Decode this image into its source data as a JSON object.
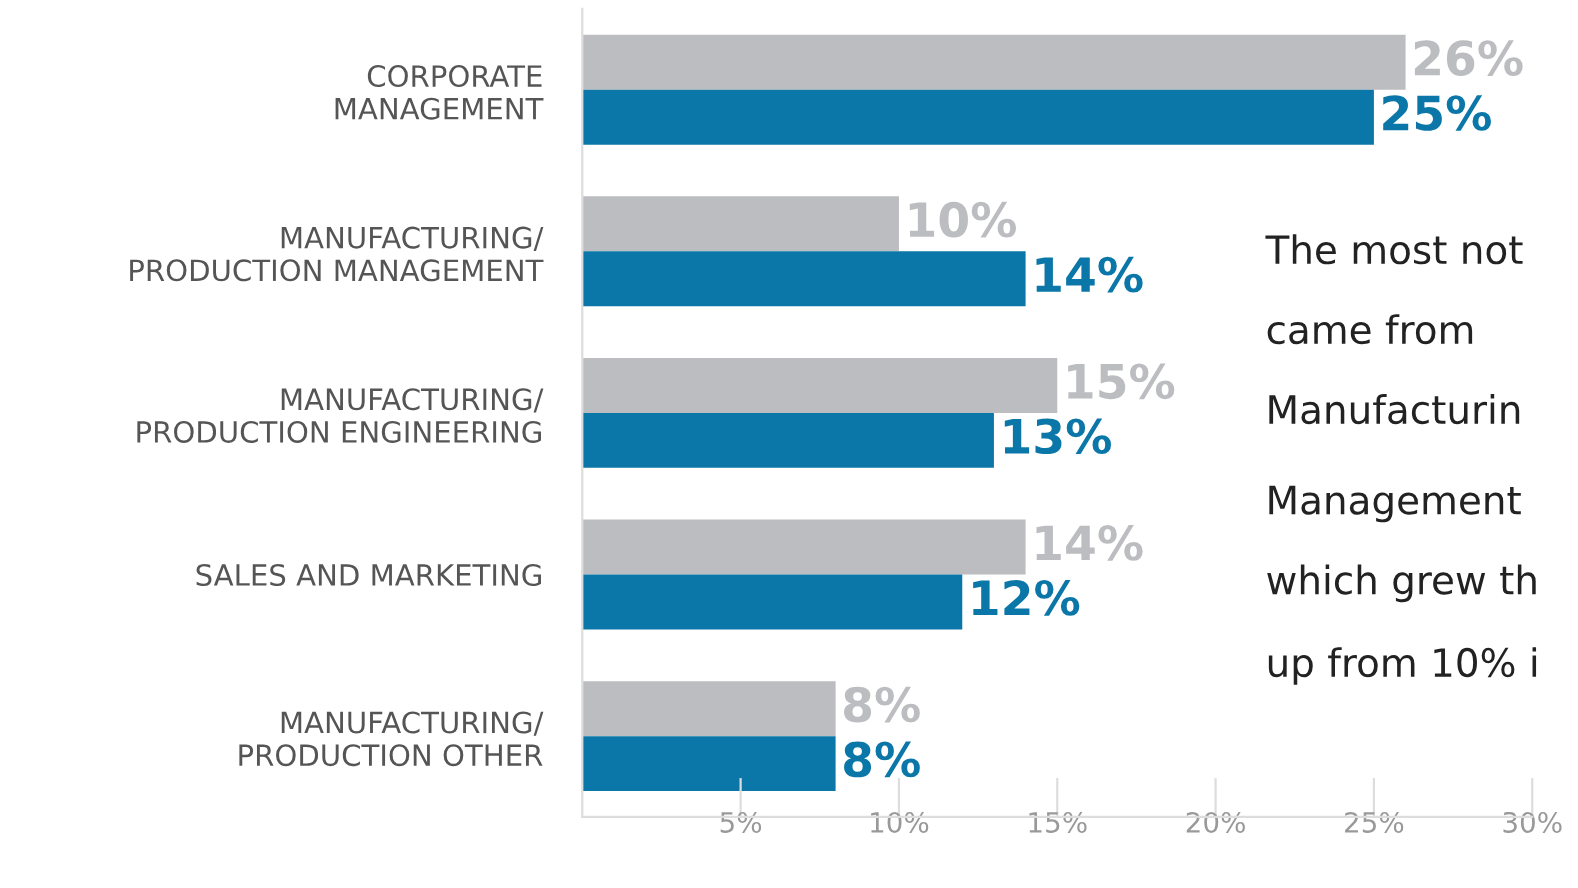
{
  "chart_data": {
    "type": "bar",
    "orientation": "horizontal",
    "categories": [
      "CORPORATE\nMANAGEMENT",
      "MANUFACTURING/\nPRODUCTION MANAGEMENT",
      "MANUFACTURING/\nPRODUCTION ENGINEERING",
      "SALES AND MARKETING",
      "MANUFACTURING/\nPRODUCTION OTHER"
    ],
    "series": [
      {
        "color": "#bcbdc0",
        "values": [
          26,
          10,
          15,
          14,
          8
        ],
        "value_labels": [
          "26%",
          "10%",
          "15%",
          "14%",
          "8%"
        ]
      },
      {
        "color": "#0b77a8",
        "values": [
          25,
          14,
          13,
          12,
          8
        ],
        "value_labels": [
          "25%",
          "14%",
          "13%",
          "12%",
          "8%"
        ]
      }
    ],
    "xlim": [
      0,
      30
    ],
    "xticks": [
      {
        "value": 5,
        "label": "5%"
      },
      {
        "value": 10,
        "label": "10%"
      },
      {
        "value": 15,
        "label": "15%"
      },
      {
        "value": 20,
        "label": "20%"
      },
      {
        "value": 25,
        "label": "25%"
      },
      {
        "value": 30,
        "label": "30%"
      }
    ],
    "grid": false,
    "legend": false,
    "annotations": [
      "The most not",
      "came from",
      "Manufacturin",
      "Management",
      "which grew th",
      "up from 10% i"
    ]
  }
}
